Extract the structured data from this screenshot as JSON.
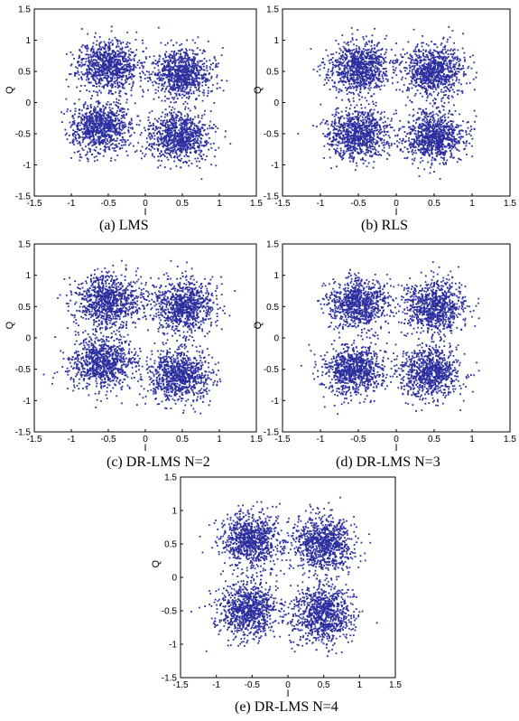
{
  "colors": {
    "marker": "#2b2f9e",
    "axis": "#000000",
    "background": "#ffffff"
  },
  "chart_data": [
    {
      "id": "a",
      "type": "scatter",
      "caption": "(a) LMS",
      "xlabel": "I",
      "ylabel": "Q",
      "xlim": [
        -1.5,
        1.5
      ],
      "ylim": [
        -1.5,
        1.5
      ],
      "xticks": [
        "-1.5",
        "-1",
        "-0.5",
        "0",
        "0.5",
        "1",
        "1.5"
      ],
      "yticks": [
        "1.5",
        "1",
        "0.5",
        "0",
        "-0.5",
        "-1",
        "-1.5"
      ],
      "grid": false,
      "legend": "none",
      "series": [
        {
          "centers": [
            [
              -0.5,
              0.6
            ],
            [
              0.5,
              0.45
            ],
            [
              -0.6,
              -0.4
            ],
            [
              0.45,
              -0.55
            ]
          ],
          "spread": 0.2,
          "points_per_cluster": 900,
          "seed": 11
        }
      ]
    },
    {
      "id": "b",
      "type": "scatter",
      "caption": "(b) RLS",
      "xlabel": "I",
      "ylabel": "Q",
      "xlim": [
        -1.5,
        1.5
      ],
      "ylim": [
        -1.5,
        1.5
      ],
      "xticks": [
        "-1.5",
        "-1",
        "-0.5",
        "0",
        "0.5",
        "1",
        "1.5"
      ],
      "yticks": [
        "1.5",
        "1",
        "0.5",
        "0",
        "-0.5",
        "-1",
        "-1.5"
      ],
      "grid": false,
      "legend": "none",
      "series": [
        {
          "centers": [
            [
              -0.5,
              0.55
            ],
            [
              0.5,
              0.5
            ],
            [
              -0.5,
              -0.5
            ],
            [
              0.5,
              -0.55
            ]
          ],
          "spread": 0.2,
          "points_per_cluster": 900,
          "seed": 23
        }
      ]
    },
    {
      "id": "c",
      "type": "scatter",
      "caption": "(c) DR-LMS N=2",
      "xlabel": "I",
      "ylabel": "Q",
      "xlim": [
        -1.5,
        1.5
      ],
      "ylim": [
        -1.5,
        1.5
      ],
      "xticks": [
        "-1.5",
        "-1",
        "-0.5",
        "0",
        "0.5",
        "1",
        "1.5"
      ],
      "yticks": [
        "1.5",
        "1",
        "0.5",
        "0",
        "-0.5",
        "-1",
        "-1.5"
      ],
      "grid": false,
      "legend": "none",
      "series": [
        {
          "centers": [
            [
              -0.5,
              0.6
            ],
            [
              0.5,
              0.5
            ],
            [
              -0.6,
              -0.4
            ],
            [
              0.45,
              -0.6
            ]
          ],
          "spread": 0.21,
          "points_per_cluster": 900,
          "seed": 37
        }
      ]
    },
    {
      "id": "d",
      "type": "scatter",
      "caption": "(d) DR-LMS N=3",
      "xlabel": "I",
      "ylabel": "Q",
      "xlim": [
        -1.5,
        1.5
      ],
      "ylim": [
        -1.5,
        1.5
      ],
      "xticks": [
        "-1.5",
        "-1",
        "-0.5",
        "0",
        "0.5",
        "1",
        "1.5"
      ],
      "yticks": [
        "1.5",
        "1",
        "0.5",
        "0",
        "-0.5",
        "-1",
        "-1.5"
      ],
      "grid": false,
      "legend": "none",
      "series": [
        {
          "centers": [
            [
              -0.5,
              0.55
            ],
            [
              0.5,
              0.5
            ],
            [
              -0.55,
              -0.5
            ],
            [
              0.45,
              -0.55
            ]
          ],
          "spread": 0.2,
          "points_per_cluster": 850,
          "seed": 41
        }
      ]
    },
    {
      "id": "e",
      "type": "scatter",
      "caption": "(e) DR-LMS N=4",
      "xlabel": "I",
      "ylabel": "Q",
      "xlim": [
        -1.5,
        1.5
      ],
      "ylim": [
        -1.5,
        1.5
      ],
      "xticks": [
        "-1.5",
        "-1",
        "-0.5",
        "0",
        "0.5",
        "1",
        "1.5"
      ],
      "yticks": [
        "1.5",
        "1",
        "0.5",
        "0",
        "-0.5",
        "-1",
        "-1.5"
      ],
      "grid": false,
      "legend": "none",
      "series": [
        {
          "centers": [
            [
              -0.5,
              0.55
            ],
            [
              0.5,
              0.5
            ],
            [
              -0.55,
              -0.5
            ],
            [
              0.5,
              -0.55
            ]
          ],
          "spread": 0.21,
          "points_per_cluster": 900,
          "seed": 53
        }
      ]
    }
  ]
}
